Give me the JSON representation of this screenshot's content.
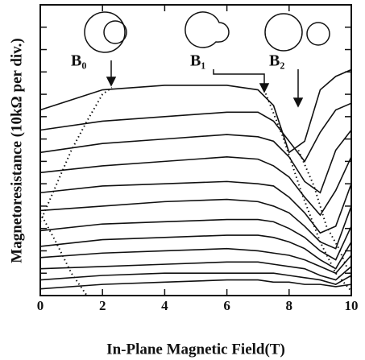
{
  "chart_data": {
    "type": "line",
    "xlabel": "In-Plane Magnetic Field(T)",
    "ylabel": "Magnetoresistance (10kΩ per div.)",
    "x": [
      0,
      2,
      4,
      6,
      7,
      7.5,
      8,
      8.5,
      9,
      9.5,
      10
    ],
    "color": "#111111",
    "series": [
      {
        "values": [
          8.3,
          9.2,
          9.4,
          9.4,
          9.2,
          8.5,
          6.4,
          6.9,
          9.2,
          9.8,
          10.1
        ]
      },
      {
        "values": [
          7.4,
          7.8,
          8.0,
          8.2,
          8.2,
          7.8,
          6.9,
          6.0,
          7.3,
          8.3,
          8.6
        ]
      },
      {
        "values": [
          6.4,
          6.8,
          7.0,
          7.2,
          7.1,
          6.9,
          6.2,
          5.1,
          4.6,
          6.5,
          7.4
        ]
      },
      {
        "values": [
          5.5,
          5.8,
          6.0,
          6.2,
          6.1,
          5.8,
          5.3,
          4.4,
          3.6,
          4.7,
          6.2
        ]
      },
      {
        "values": [
          4.6,
          4.9,
          5.0,
          5.1,
          5.0,
          4.9,
          4.4,
          3.7,
          2.8,
          3.1,
          5.0
        ]
      },
      {
        "values": [
          3.8,
          4.0,
          4.2,
          4.3,
          4.2,
          4.0,
          3.7,
          3.1,
          2.4,
          2.1,
          4.0
        ]
      },
      {
        "values": [
          2.9,
          3.2,
          3.3,
          3.4,
          3.4,
          3.3,
          3.0,
          2.6,
          2.0,
          1.6,
          3.1
        ]
      },
      {
        "values": [
          2.2,
          2.5,
          2.6,
          2.7,
          2.7,
          2.6,
          2.4,
          2.1,
          1.6,
          1.2,
          2.4
        ]
      },
      {
        "values": [
          1.7,
          1.9,
          2.0,
          2.1,
          2.0,
          1.9,
          1.8,
          1.6,
          1.3,
          1.0,
          1.8
        ]
      },
      {
        "values": [
          1.2,
          1.3,
          1.4,
          1.5,
          1.5,
          1.4,
          1.3,
          1.2,
          0.9,
          0.7,
          1.3
        ]
      },
      {
        "values": [
          0.7,
          0.9,
          1.0,
          1.0,
          1.0,
          1.0,
          0.9,
          0.8,
          0.7,
          0.5,
          0.9
        ]
      },
      {
        "values": [
          0.3,
          0.5,
          0.6,
          0.7,
          0.7,
          0.6,
          0.6,
          0.5,
          0.5,
          0.4,
          0.5
        ]
      }
    ],
    "dotted_curves": [
      {
        "x": [
          0,
          0.5,
          1,
          1.5,
          2,
          2.3
        ],
        "values": [
          3.3,
          4.9,
          6.5,
          7.8,
          9.0,
          9.3
        ]
      },
      {
        "x": [
          0,
          0.5,
          1,
          1.5
        ],
        "values": [
          3.7,
          2.4,
          1.0,
          0
        ]
      },
      {
        "x": [
          7.2,
          7.8,
          8.4,
          9,
          9.5,
          10
        ],
        "values": [
          9.2,
          7.1,
          4.6,
          2.4,
          1.0,
          0.2
        ]
      },
      {
        "x": [
          8.3,
          8.8,
          9.2,
          9.6,
          10
        ],
        "values": [
          6.5,
          4.9,
          3.1,
          2.1,
          0.8
        ]
      }
    ],
    "annotations": [
      "B₀",
      "B₁",
      "B₂"
    ],
    "xlim": [
      0,
      10
    ],
    "xticks": [
      0,
      2,
      4,
      6,
      8,
      10
    ],
    "ylim": [
      0,
      13
    ],
    "yticks": [
      1,
      2,
      3,
      4,
      5,
      6,
      7,
      8,
      9,
      10,
      11,
      12
    ]
  }
}
